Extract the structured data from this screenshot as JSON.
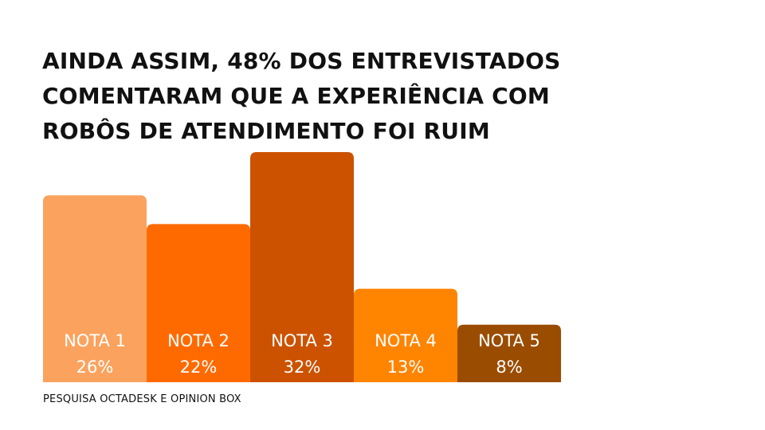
{
  "chart_data": {
    "type": "bar",
    "title_lines": [
      "AINDA ASSIM, 48% DOS ENTREVISTADOS",
      "COMENTARAM QUE A EXPERIÊNCIA COM",
      "ROBÔS DE ATENDIMENTO FOI RUIM"
    ],
    "categories": [
      "NOTA 1",
      "NOTA 2",
      "NOTA 3",
      "NOTA 4",
      "NOTA 5"
    ],
    "values": [
      26,
      22,
      32,
      13,
      8
    ],
    "value_labels": [
      "26%",
      "22%",
      "32%",
      "13%",
      "8%"
    ],
    "colors": [
      "#FBA35E",
      "#FF6A00",
      "#CC5200",
      "#FF8400",
      "#9A4C00"
    ],
    "ylim": [
      0,
      32
    ],
    "grid": false,
    "legend": "none"
  },
  "footer": {
    "source": "PESQUISA OCTADESK E OPINION BOX"
  }
}
